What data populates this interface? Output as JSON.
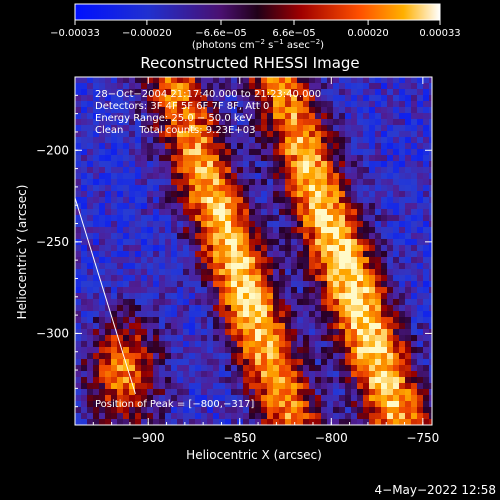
{
  "chart_data": {
    "type": "heatmap",
    "title": "Reconstructed RHESSI Image",
    "xlabel": "Heliocentric X (arcsec)",
    "ylabel": "Heliocentric Y (arcsec)",
    "xlim": [
      -940,
      -745
    ],
    "ylim": [
      -350,
      -160
    ],
    "x_ticks": [
      -900,
      -850,
      -800,
      -750
    ],
    "x_tick_labels": [
      "−900",
      "−850",
      "−800",
      "−750"
    ],
    "y_ticks": [
      -200,
      -250,
      -300
    ],
    "y_tick_labels": [
      "−200",
      "−250",
      "−300"
    ],
    "colorbar": {
      "min": -0.00033,
      "max": 0.00033,
      "ticks": [
        -0.00033,
        -0.0002,
        -6.6e-05,
        6.6e-05,
        0.0002,
        0.00033
      ],
      "tick_labels": [
        "−0.00033",
        "−0.00020",
        "−6.6e−05",
        "6.6e−05",
        "0.00020",
        "0.00033"
      ],
      "units_main": "(photons cm",
      "units_sup1": "−2",
      "units_mid1": " s",
      "units_sup2": "−1",
      "units_mid2": " asec",
      "units_sup3": "−2",
      "units_end": ")"
    },
    "annotations": {
      "time_range": "28−Oct−2004 21:17:40.000 to 21:23:40.000",
      "detectors": "Detectors: 3F 4F 5F 6F 7F 8F, Att 0",
      "energy": "Energy Range: 25.0 − 50.0 keV",
      "method": "Clean     Total counts: 9.23E+03",
      "peak": "Position of Peak = [−800,−317]"
    },
    "limb_line": [
      {
        "x": -940,
        "y": -226
      },
      {
        "x": -907,
        "y": -333
      }
    ],
    "bands": [
      {
        "center_x": -853,
        "width": 18,
        "amp": 1.0,
        "center_y": -262,
        "span_y": 60
      },
      {
        "center_x": -790,
        "width": 18,
        "amp": 1.05,
        "center_y": -275,
        "span_y": 70
      }
    ],
    "date_stamp": "4−May−2022 12:58"
  }
}
